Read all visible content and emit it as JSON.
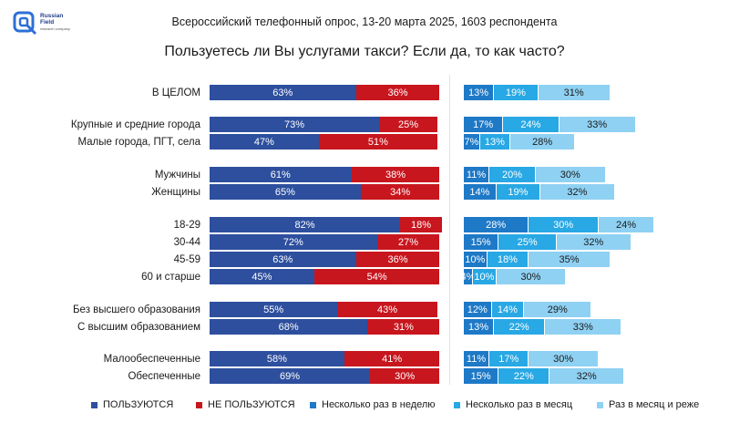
{
  "header": {
    "logo_text": "Russian Field",
    "logo_sub": "research company",
    "survey": "Всероссийский телефонный опрос, 13-20 марта 2025, 1603 респондента",
    "question": "Пользуетесь ли Вы услугами такси? Если да, то как часто?"
  },
  "colors": {
    "use": "#2d4f9e",
    "not_use": "#c8161e",
    "weekly": "#1e79c7",
    "monthly": "#28a8e4",
    "rarely": "#8fd1f3"
  },
  "chart_data": [
    {
      "type": "bar",
      "orientation": "horizontal",
      "stacked": true,
      "title": "",
      "categories": [
        "В ЦЕЛОМ",
        "Крупные и средние города",
        "Малые города, ПГТ, села",
        "Мужчины",
        "Женщины",
        "18-29",
        "30-44",
        "45-59",
        "60 и старше",
        "Без высшего образования",
        "С высшим образованием",
        "Малообеспеченные",
        "Обеспеченные"
      ],
      "series": [
        {
          "name": "ПОЛЬЗУЮТСЯ",
          "values": [
            63,
            73,
            47,
            61,
            65,
            82,
            72,
            63,
            45,
            55,
            68,
            58,
            69
          ]
        },
        {
          "name": "НЕ ПОЛЬЗУЮТСЯ",
          "values": [
            36,
            25,
            51,
            38,
            34,
            18,
            27,
            36,
            54,
            43,
            31,
            41,
            30
          ]
        }
      ],
      "unit": "%",
      "legend": "bottom"
    },
    {
      "type": "bar",
      "orientation": "horizontal",
      "stacked": true,
      "title": "",
      "categories": [
        "В ЦЕЛОМ",
        "Крупные и средние города",
        "Малые города, ПГТ, села",
        "Мужчины",
        "Женщины",
        "18-29",
        "30-44",
        "45-59",
        "60 и старше",
        "Без высшего образования",
        "С высшим образованием",
        "Малообеспеченные",
        "Обеспеченные"
      ],
      "series": [
        {
          "name": "Несколько раз в неделю",
          "values": [
            13,
            17,
            7,
            11,
            14,
            28,
            15,
            10,
            4,
            12,
            13,
            11,
            15
          ]
        },
        {
          "name": "Несколько раз в месяц",
          "values": [
            19,
            24,
            13,
            20,
            19,
            30,
            25,
            18,
            10,
            14,
            22,
            17,
            22
          ]
        },
        {
          "name": "Раз в месяц и реже",
          "values": [
            31,
            33,
            28,
            30,
            32,
            24,
            32,
            35,
            30,
            29,
            33,
            30,
            32
          ]
        }
      ],
      "unit": "%",
      "legend": "bottom"
    }
  ]
}
